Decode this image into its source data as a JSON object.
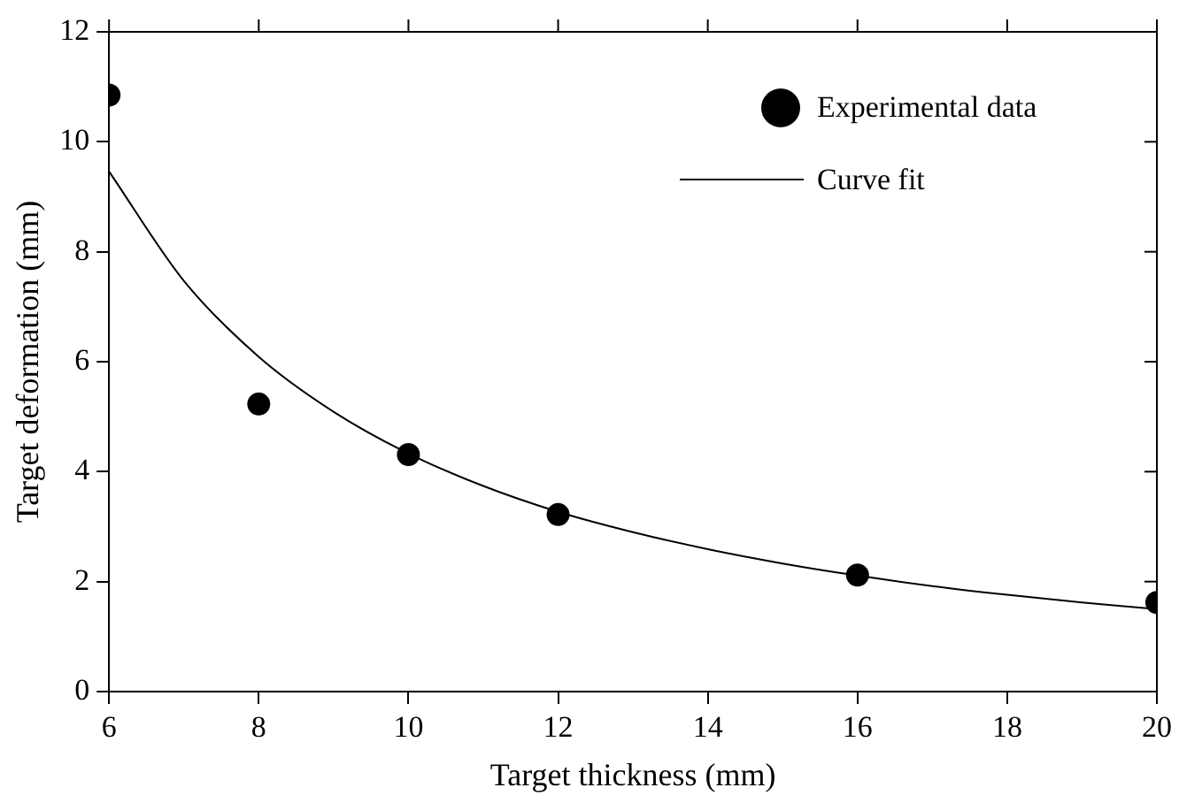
{
  "chart_data": {
    "type": "scatter",
    "xlabel": "Target thickness (mm)",
    "ylabel": "Target deformation (mm)",
    "xlim": [
      6,
      20
    ],
    "xticks": [
      6,
      8,
      10,
      12,
      14,
      16,
      18,
      20
    ],
    "ylim": [
      0,
      12
    ],
    "yticks": [
      0,
      2,
      4,
      6,
      8,
      10,
      12
    ],
    "grid": false,
    "legend": "top right",
    "series": [
      {
        "name": "Experimental data",
        "marker": "circle",
        "color": "#000000",
        "x": [
          6,
          8,
          10,
          12,
          16,
          20
        ],
        "values": [
          10.85,
          5.23,
          4.31,
          3.22,
          2.12,
          1.62
        ]
      },
      {
        "name": "Curve fit",
        "type": "line",
        "marker": "none",
        "line_style": "solid",
        "color": "#000000",
        "x": [
          6,
          7,
          8,
          9,
          10,
          11,
          12,
          13,
          14,
          15,
          16,
          17,
          18,
          19,
          20
        ],
        "values": [
          9.46,
          7.47,
          6.09,
          5.09,
          4.33,
          3.74,
          3.27,
          2.9,
          2.59,
          2.33,
          2.11,
          1.92,
          1.76,
          1.62,
          1.5
        ]
      }
    ]
  }
}
